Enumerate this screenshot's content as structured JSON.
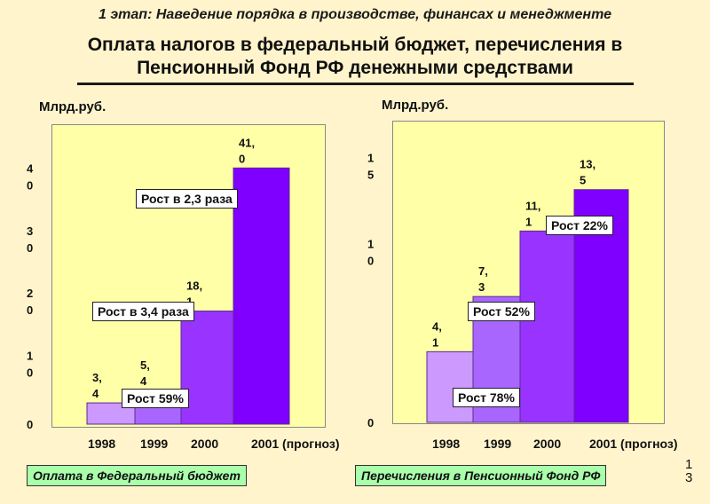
{
  "header": {
    "stage": "1 этап: Наведение порядка в производстве, финансах и менеджменте",
    "title_line1": "Оплата налогов в федеральный бюджет, перечисления в",
    "title_line2": "Пенсионный Фонд РФ денежными средствами"
  },
  "slide_number": "13",
  "chart_data": [
    {
      "type": "bar",
      "unit_label": "Млрд.руб.",
      "categories": [
        "1998",
        "1999",
        "2000",
        "2001 (прогноз)"
      ],
      "values": [
        3.4,
        5.4,
        18.1,
        41.0
      ],
      "value_labels": [
        "3,\n4",
        "5,\n4",
        "18,\n1",
        "41,\n0"
      ],
      "y_ticks": [
        {
          "value": 0,
          "label": "0"
        },
        {
          "value": 10,
          "label": "1\n0"
        },
        {
          "value": 20,
          "label": "2\n0"
        },
        {
          "value": 30,
          "label": "3\n0"
        },
        {
          "value": 40,
          "label": "4\n0"
        }
      ],
      "ylim": [
        0,
        48
      ],
      "growth_labels": [
        "Рост 59%",
        "Рост в 3,4 раза",
        "Рост в 2,3 раза"
      ],
      "legend": "Оплата в Федеральный бюджет",
      "colors": [
        "#cc99ff",
        "#a866ff",
        "#9933ff",
        "#7f00ff"
      ]
    },
    {
      "type": "bar",
      "unit_label": "Млрд.руб.",
      "categories": [
        "1998",
        "1999",
        "2000",
        "2001 (прогноз)"
      ],
      "values": [
        4.1,
        7.3,
        11.1,
        13.5
      ],
      "value_labels": [
        "4,\n1",
        "7,\n3",
        "11,\n1",
        "13,\n5"
      ],
      "y_ticks": [
        {
          "value": 0,
          "label": "0"
        },
        {
          "value": 10,
          "label": "1\n0"
        },
        {
          "value": 15,
          "label": "1\n5"
        }
      ],
      "ylim": [
        0,
        17.5
      ],
      "growth_labels": [
        "Рост 78%",
        "Рост 52%",
        "Рост 22%"
      ],
      "legend": "Перечисления в Пенсионный Фонд РФ",
      "colors": [
        "#cc99ff",
        "#a866ff",
        "#9933ff",
        "#7f00ff"
      ]
    }
  ]
}
